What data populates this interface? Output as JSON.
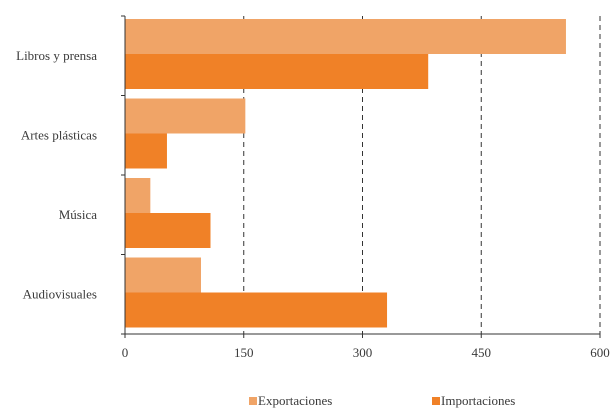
{
  "chart_data": {
    "type": "bar",
    "orientation": "horizontal",
    "categories": [
      "Libros y prensa",
      "Artes plásticas",
      "Música",
      "Audiovisuales"
    ],
    "series": [
      {
        "name": "Exportaciones",
        "color": "#F0A467",
        "values": [
          557,
          152,
          32,
          96
        ]
      },
      {
        "name": "Importaciones",
        "color": "#F08127",
        "values": [
          383,
          53,
          108,
          331
        ]
      }
    ],
    "xticks": [
      "0",
      "150",
      "300",
      "450",
      "600"
    ],
    "xlim": [
      0,
      600
    ],
    "grid": "vertical dashed",
    "legend": "bottom"
  }
}
